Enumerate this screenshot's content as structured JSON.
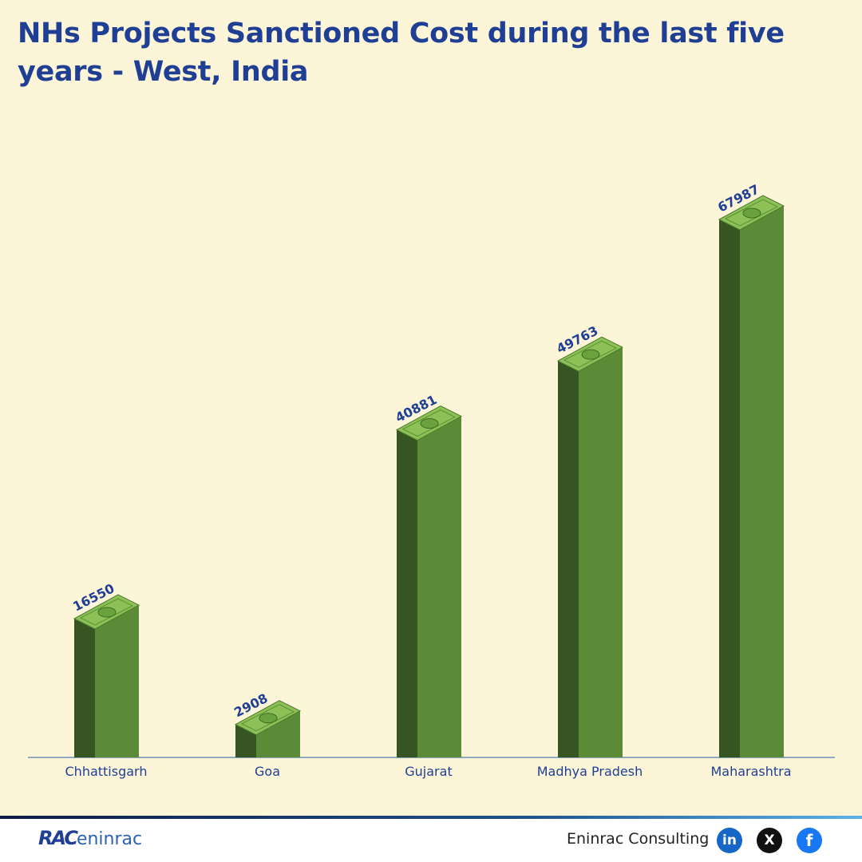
{
  "chart_data": {
    "type": "bar",
    "title": "NHs Projects Sanctioned Cost during the last five years - West, India",
    "categories": [
      "Chhattisgarh",
      "Goa",
      "Gujarat",
      "Madhya Pradesh",
      "Maharashtra"
    ],
    "values": [
      16550,
      2908,
      40881,
      49763,
      67987
    ],
    "color": "#5b8b37"
  },
  "footer": {
    "logo_mark": "RAC",
    "logo_text": "eninrac",
    "brand": "Eninrac Consulting",
    "social": [
      "in",
      "X",
      "f"
    ]
  }
}
